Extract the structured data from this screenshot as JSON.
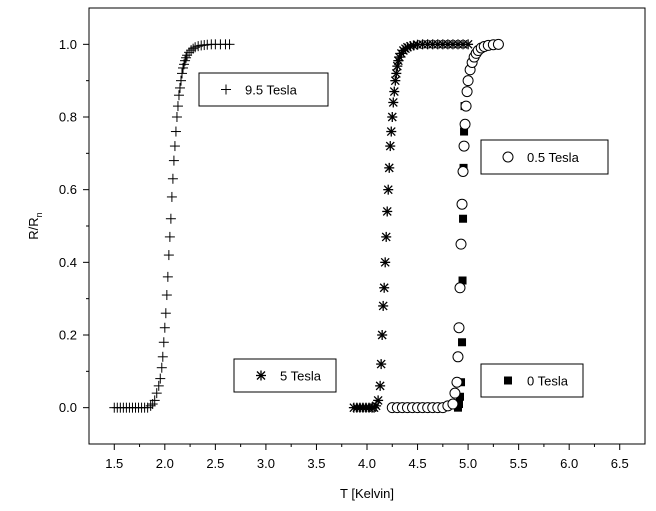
{
  "chart_data": {
    "type": "scatter",
    "xlabel": "T [Kelvin]",
    "ylabel_main": "R/R",
    "ylabel_sub": "n",
    "xlim": [
      1.25,
      6.75
    ],
    "ylim": [
      -0.1,
      1.1
    ],
    "x_ticks": [
      "1.5",
      "2.0",
      "2.5",
      "3.0",
      "3.5",
      "4.0",
      "4.5",
      "5.0",
      "5.5",
      "6.0",
      "6.5"
    ],
    "y_ticks": [
      "0.0",
      "0.2",
      "0.4",
      "0.6",
      "0.8",
      "1.0"
    ],
    "grid": false,
    "series": [
      {
        "name": "9.5 Tesla",
        "marker": "plus",
        "x": [
          1.5,
          1.53,
          1.56,
          1.59,
          1.62,
          1.65,
          1.68,
          1.71,
          1.74,
          1.77,
          1.8,
          1.83,
          1.86,
          1.88,
          1.9,
          1.92,
          1.94,
          1.955,
          1.97,
          1.98,
          1.99,
          2.0,
          2.01,
          2.02,
          2.03,
          2.04,
          2.05,
          2.06,
          2.07,
          2.08,
          2.09,
          2.1,
          2.11,
          2.12,
          2.13,
          2.14,
          2.15,
          2.16,
          2.17,
          2.18,
          2.19,
          2.2,
          2.21,
          2.22,
          2.24,
          2.26,
          2.28,
          2.3,
          2.33,
          2.36,
          2.39,
          2.42,
          2.46,
          2.5,
          2.55,
          2.6,
          2.64
        ],
        "y": [
          0,
          0,
          0,
          0,
          0,
          0,
          0,
          0,
          0,
          0,
          0,
          0,
          0.005,
          0.01,
          0.02,
          0.04,
          0.06,
          0.08,
          0.11,
          0.14,
          0.18,
          0.22,
          0.26,
          0.31,
          0.36,
          0.42,
          0.47,
          0.52,
          0.58,
          0.63,
          0.68,
          0.72,
          0.76,
          0.8,
          0.83,
          0.86,
          0.88,
          0.9,
          0.92,
          0.935,
          0.945,
          0.955,
          0.963,
          0.97,
          0.978,
          0.984,
          0.988,
          0.992,
          0.995,
          0.997,
          0.998,
          0.999,
          1,
          1,
          1,
          1,
          1
        ]
      },
      {
        "name": "5 Tesla",
        "marker": "star",
        "x": [
          3.87,
          3.9,
          3.93,
          3.96,
          3.99,
          4.02,
          4.05,
          4.07,
          4.09,
          4.11,
          4.13,
          4.14,
          4.15,
          4.16,
          4.17,
          4.18,
          4.19,
          4.2,
          4.21,
          4.22,
          4.23,
          4.24,
          4.25,
          4.26,
          4.27,
          4.28,
          4.29,
          4.3,
          4.31,
          4.32,
          4.34,
          4.36,
          4.38,
          4.4,
          4.43,
          4.46,
          4.5,
          4.55,
          4.6,
          4.65,
          4.7,
          4.75,
          4.8,
          4.85,
          4.9,
          4.95,
          5.0
        ],
        "y": [
          0,
          0,
          0,
          0,
          0,
          0,
          0,
          0,
          0.005,
          0.02,
          0.06,
          0.12,
          0.2,
          0.28,
          0.33,
          0.4,
          0.47,
          0.54,
          0.6,
          0.66,
          0.72,
          0.76,
          0.8,
          0.84,
          0.87,
          0.9,
          0.92,
          0.94,
          0.955,
          0.965,
          0.975,
          0.983,
          0.988,
          0.992,
          0.995,
          0.997,
          0.999,
          1,
          1,
          1,
          1,
          1,
          1,
          1,
          1,
          1,
          1
        ]
      },
      {
        "name": "0.5 Tesla",
        "marker": "circle",
        "x": [
          4.25,
          4.3,
          4.35,
          4.4,
          4.45,
          4.5,
          4.55,
          4.6,
          4.65,
          4.7,
          4.75,
          4.8,
          4.85,
          4.87,
          4.89,
          4.9,
          4.91,
          4.92,
          4.93,
          4.94,
          4.95,
          4.96,
          4.97,
          4.98,
          4.99,
          5.0,
          5.02,
          5.04,
          5.06,
          5.08,
          5.1,
          5.13,
          5.16,
          5.2,
          5.25,
          5.3
        ],
        "y": [
          0,
          0,
          0,
          0,
          0,
          0,
          0,
          0,
          0,
          0,
          0,
          0.005,
          0.01,
          0.04,
          0.07,
          0.14,
          0.22,
          0.33,
          0.45,
          0.56,
          0.65,
          0.72,
          0.78,
          0.83,
          0.87,
          0.9,
          0.93,
          0.95,
          0.965,
          0.975,
          0.983,
          0.99,
          0.994,
          0.997,
          0.999,
          1
        ]
      },
      {
        "name": "0 Tesla",
        "marker": "square",
        "x": [
          4.9,
          4.91,
          4.92,
          4.93,
          4.94,
          4.945,
          4.95,
          4.955,
          4.96,
          4.965
        ],
        "y": [
          0,
          0.01,
          0.03,
          0.07,
          0.18,
          0.35,
          0.52,
          0.66,
          0.76,
          0.83
        ]
      }
    ],
    "legend": [
      {
        "label": "9.5 Tesla",
        "marker": "plus"
      },
      {
        "label": "5 Tesla",
        "marker": "star"
      },
      {
        "label": "0.5 Tesla",
        "marker": "circle"
      },
      {
        "label": "0 Tesla",
        "marker": "square"
      }
    ]
  }
}
